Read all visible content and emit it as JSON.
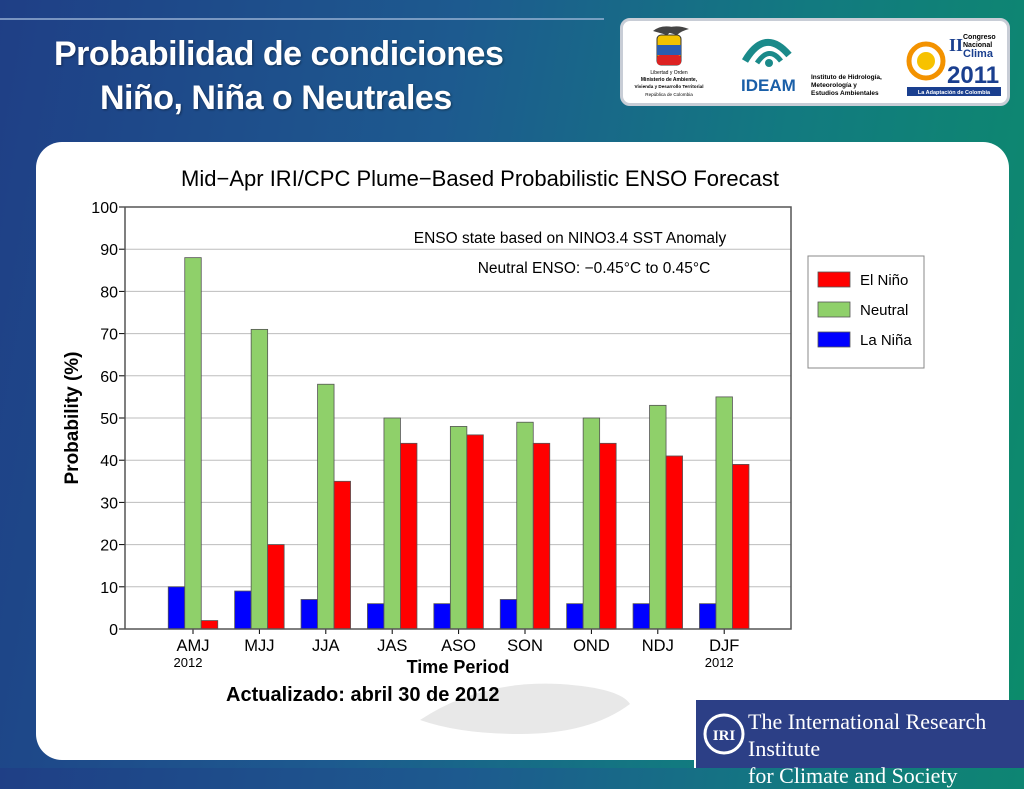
{
  "slide": {
    "title_line1": "Probabilidad de condiciones",
    "title_line2": "Niño, Niña o Neutrales",
    "updated": "Actualizado: abril 30 de 2012"
  },
  "logos": {
    "ministerio_lines": [
      "Libertad y Orden",
      "Ministerio de Ambiente,",
      "Vivienda y Desarrollo Territorial",
      "República de Colombia"
    ],
    "ideam_name": "IDEAM",
    "ideam_desc": [
      "Instituto de Hidrología,",
      "Meteorología y",
      "Estudios Ambientales"
    ],
    "congreso_lines": [
      "Congreso",
      "Nacional",
      "Clima"
    ],
    "congreso_numeral": "II",
    "congreso_year": "2011",
    "congreso_tagline": "La Adaptación de Colombia",
    "iri_badge": "IRI",
    "iri_line1": "The International Research Institute",
    "iri_line2": "for Climate and Society"
  },
  "chart_data": {
    "type": "bar",
    "title": "Mid−Apr IRI/CPC Plume−Based Probabilistic ENSO Forecast",
    "annotation1": "ENSO state based on NINO3.4 SST Anomaly",
    "annotation2": "Neutral ENSO: −0.45°C to 0.45°C",
    "xlabel": "Time Period",
    "ylabel": "Probability (%)",
    "ylim": [
      0,
      100
    ],
    "yticks": [
      0,
      10,
      20,
      30,
      40,
      50,
      60,
      70,
      80,
      90,
      100
    ],
    "grid": true,
    "legend_position": "right",
    "categories": [
      "AMJ",
      "MJJ",
      "JJA",
      "JAS",
      "ASO",
      "SON",
      "OND",
      "NDJ",
      "DJF"
    ],
    "category_sublabels": [
      "2012",
      "",
      "",
      "",
      "",
      "",
      "",
      "",
      "2012"
    ],
    "series": [
      {
        "name": "La Niña",
        "color": "#0000ff",
        "values": [
          10,
          9,
          7,
          6,
          6,
          7,
          6,
          6,
          6
        ]
      },
      {
        "name": "Neutral",
        "color": "#8fd06a",
        "values": [
          88,
          71,
          58,
          50,
          48,
          49,
          50,
          53,
          55
        ]
      },
      {
        "name": "El Niño",
        "color": "#ff0000",
        "values": [
          2,
          20,
          35,
          44,
          46,
          44,
          44,
          41,
          39
        ]
      }
    ],
    "legend_order": [
      "El Niño",
      "Neutral",
      "La Niña"
    ]
  }
}
